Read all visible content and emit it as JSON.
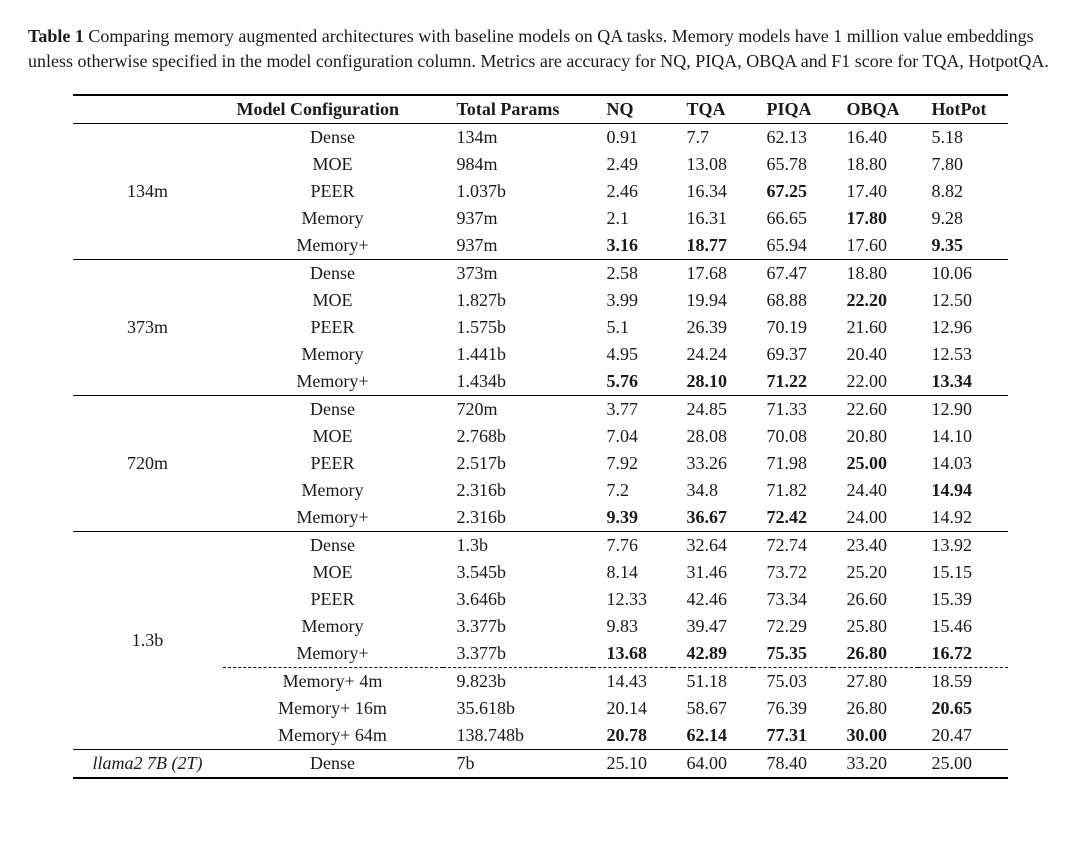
{
  "caption": {
    "label": "Table 1",
    "text_before_memory": " Comparing memory augmented architectures with baseline models on QA tasks. ",
    "memory_word": "Memory",
    "text_after_memory": " models have 1 million value embeddings unless otherwise specified in the model configuration column. Metrics are accuracy for NQ, PIQA, OBQA and F1 score for TQA, HotpotQA."
  },
  "columns": [
    "",
    "Model Configuration",
    "Total Params",
    "NQ",
    "TQA",
    "PIQA",
    "OBQA",
    "HotPot"
  ],
  "style": {
    "font_family": "Times New Roman",
    "font_size_pt": 13,
    "header_font_weight": "700",
    "rule_color": "#000000",
    "background": "#ffffff",
    "text_color": "#1a1a1a",
    "bold_cells_weight": "700",
    "dash_pattern": "4 3"
  },
  "groups": [
    {
      "label": "134m",
      "rows": [
        {
          "config": "Dense",
          "params": "134m",
          "nq": "0.91",
          "tqa": "7.7",
          "piqa": "62.13",
          "obqa": "16.40",
          "hotpot": "5.18",
          "bold": []
        },
        {
          "config": "MOE",
          "params": "984m",
          "nq": "2.49",
          "tqa": "13.08",
          "piqa": "65.78",
          "obqa": "18.80",
          "hotpot": "7.80",
          "bold": []
        },
        {
          "config": "PEER",
          "params": "1.037b",
          "nq": "2.46",
          "tqa": "16.34",
          "piqa": "67.25",
          "obqa": "17.40",
          "hotpot": "8.82",
          "bold": [
            "piqa"
          ]
        },
        {
          "config": "Memory",
          "params": "937m",
          "nq": "2.1",
          "tqa": "16.31",
          "piqa": "66.65",
          "obqa": "17.80",
          "hotpot": "9.28",
          "bold": [
            "obqa"
          ]
        },
        {
          "config": "Memory+",
          "params": "937m",
          "nq": "3.16",
          "tqa": "18.77",
          "piqa": "65.94",
          "obqa": "17.60",
          "hotpot": "9.35",
          "bold": [
            "nq",
            "tqa",
            "hotpot"
          ]
        }
      ]
    },
    {
      "label": "373m",
      "rows": [
        {
          "config": "Dense",
          "params": "373m",
          "nq": "2.58",
          "tqa": "17.68",
          "piqa": "67.47",
          "obqa": "18.80",
          "hotpot": "10.06",
          "bold": []
        },
        {
          "config": "MOE",
          "params": "1.827b",
          "nq": "3.99",
          "tqa": "19.94",
          "piqa": "68.88",
          "obqa": "22.20",
          "hotpot": "12.50",
          "bold": [
            "obqa"
          ]
        },
        {
          "config": "PEER",
          "params": "1.575b",
          "nq": "5.1",
          "tqa": "26.39",
          "piqa": "70.19",
          "obqa": "21.60",
          "hotpot": "12.96",
          "bold": []
        },
        {
          "config": "Memory",
          "params": "1.441b",
          "nq": "4.95",
          "tqa": "24.24",
          "piqa": "69.37",
          "obqa": "20.40",
          "hotpot": "12.53",
          "bold": []
        },
        {
          "config": "Memory+",
          "params": "1.434b",
          "nq": "5.76",
          "tqa": "28.10",
          "piqa": "71.22",
          "obqa": "22.00",
          "hotpot": "13.34",
          "bold": [
            "nq",
            "tqa",
            "piqa",
            "hotpot"
          ]
        }
      ]
    },
    {
      "label": "720m",
      "rows": [
        {
          "config": "Dense",
          "params": "720m",
          "nq": "3.77",
          "tqa": "24.85",
          "piqa": "71.33",
          "obqa": "22.60",
          "hotpot": "12.90",
          "bold": []
        },
        {
          "config": "MOE",
          "params": "2.768b",
          "nq": "7.04",
          "tqa": "28.08",
          "piqa": "70.08",
          "obqa": "20.80",
          "hotpot": "14.10",
          "bold": []
        },
        {
          "config": "PEER",
          "params": "2.517b",
          "nq": "7.92",
          "tqa": "33.26",
          "piqa": "71.98",
          "obqa": "25.00",
          "hotpot": "14.03",
          "bold": [
            "obqa"
          ]
        },
        {
          "config": "Memory",
          "params": "2.316b",
          "nq": "7.2",
          "tqa": "34.8",
          "piqa": "71.82",
          "obqa": "24.40",
          "hotpot": "14.94",
          "bold": [
            "hotpot"
          ]
        },
        {
          "config": "Memory+",
          "params": "2.316b",
          "nq": "9.39",
          "tqa": "36.67",
          "piqa": "72.42",
          "obqa": "24.00",
          "hotpot": "14.92",
          "bold": [
            "nq",
            "tqa",
            "piqa"
          ]
        }
      ]
    },
    {
      "label": "1.3b",
      "rows": [
        {
          "config": "Dense",
          "params": "1.3b",
          "nq": "7.76",
          "tqa": "32.64",
          "piqa": "72.74",
          "obqa": "23.40",
          "hotpot": "13.92",
          "bold": []
        },
        {
          "config": "MOE",
          "params": "3.545b",
          "nq": "8.14",
          "tqa": "31.46",
          "piqa": "73.72",
          "obqa": "25.20",
          "hotpot": "15.15",
          "bold": []
        },
        {
          "config": "PEER",
          "params": "3.646b",
          "nq": "12.33",
          "tqa": "42.46",
          "piqa": "73.34",
          "obqa": "26.60",
          "hotpot": "15.39",
          "bold": []
        },
        {
          "config": "Memory",
          "params": "3.377b",
          "nq": "9.83",
          "tqa": "39.47",
          "piqa": "72.29",
          "obqa": "25.80",
          "hotpot": "15.46",
          "bold": []
        },
        {
          "config": "Memory+",
          "params": "3.377b",
          "nq": "13.68",
          "tqa": "42.89",
          "piqa": "75.35",
          "obqa": "26.80",
          "hotpot": "16.72",
          "bold": [
            "nq",
            "tqa",
            "piqa",
            "obqa",
            "hotpot"
          ]
        }
      ],
      "extra_rows": [
        {
          "config": "Memory+ 4m",
          "params": "9.823b",
          "nq": "14.43",
          "tqa": "51.18",
          "piqa": "75.03",
          "obqa": "27.80",
          "hotpot": "18.59",
          "bold": []
        },
        {
          "config": "Memory+ 16m",
          "params": "35.618b",
          "nq": "20.14",
          "tqa": "58.67",
          "piqa": "76.39",
          "obqa": "26.80",
          "hotpot": "20.65",
          "bold": [
            "hotpot"
          ]
        },
        {
          "config": "Memory+ 64m",
          "params": "138.748b",
          "nq": "20.78",
          "tqa": "62.14",
          "piqa": "77.31",
          "obqa": "30.00",
          "hotpot": "20.47",
          "bold": [
            "nq",
            "tqa",
            "piqa",
            "obqa"
          ]
        }
      ]
    }
  ],
  "footer_row": {
    "label": "llama2 7B (2T)",
    "config": "Dense",
    "params": "7b",
    "nq": "25.10",
    "tqa": "64.00",
    "piqa": "78.40",
    "obqa": "33.20",
    "hotpot": "25.00"
  }
}
